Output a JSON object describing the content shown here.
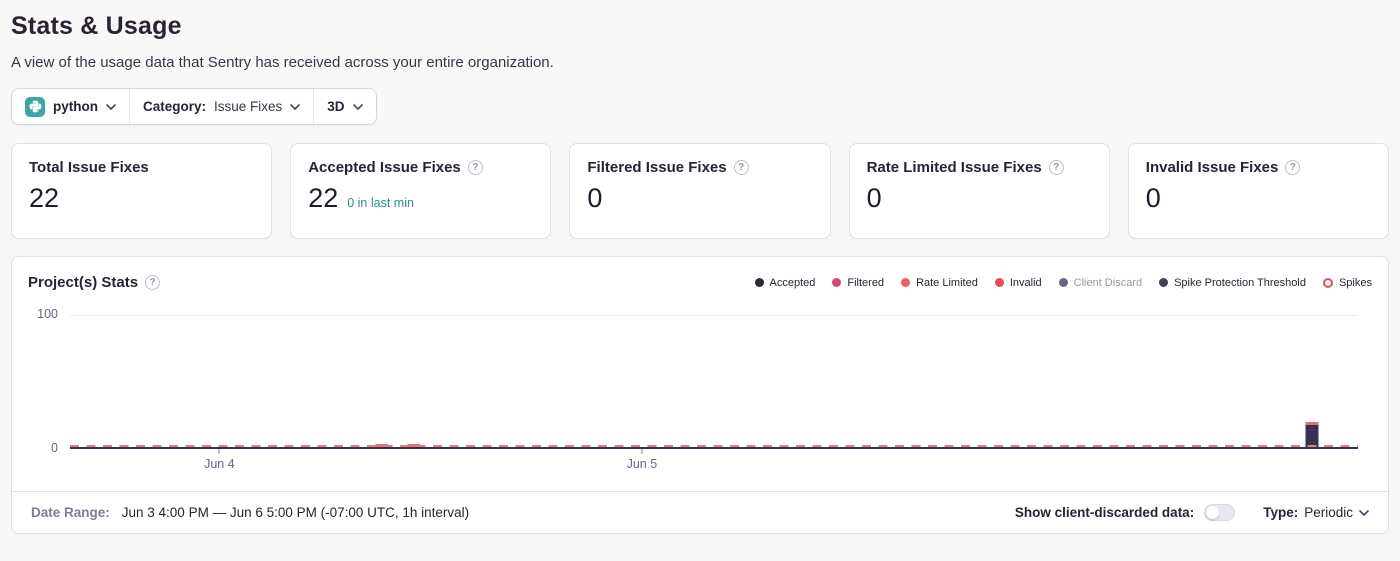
{
  "page": {
    "title": "Stats & Usage",
    "subtitle": "A view of the usage data that Sentry has received across your entire organization."
  },
  "icons": {
    "help": "?"
  },
  "colors": {
    "accent_teal": "#2d8f8a",
    "python_icon_bg": "#3aa6a6",
    "axis": "#3a3152",
    "bar_fill": "#3b3153",
    "bar_cap": "#ee6a72",
    "threshold_dash": "#e97b7b",
    "card_border": "#e3dee9",
    "page_bg": "#f8f8f9"
  },
  "filters": {
    "project": {
      "label": "python"
    },
    "category": {
      "label": "Category:",
      "value": "Issue Fixes"
    },
    "period": {
      "label": "3D"
    }
  },
  "cards": [
    {
      "title": "Total Issue Fixes",
      "value": "22"
    },
    {
      "title": "Accepted Issue Fixes",
      "value": "22",
      "extra": "0 in last min"
    },
    {
      "title": "Filtered Issue Fixes",
      "value": "0"
    },
    {
      "title": "Rate Limited Issue Fixes",
      "value": "0"
    },
    {
      "title": "Invalid Issue Fixes",
      "value": "0"
    }
  ],
  "chart": {
    "title": "Project(s) Stats",
    "legend": [
      {
        "label": "Accepted",
        "color": "#2f2936"
      },
      {
        "label": "Filtered",
        "color": "#d0487e"
      },
      {
        "label": "Rate Limited",
        "color": "#ec5e64"
      },
      {
        "label": "Invalid",
        "color": "#ea4a55"
      },
      {
        "label": "Client Discard",
        "color": "#6f6487",
        "muted": true
      },
      {
        "label": "Spike Protection Threshold",
        "color": "#443d54"
      },
      {
        "label": "Spikes",
        "color": "#ee4b5a",
        "hollow": true
      }
    ]
  },
  "chart_data": {
    "type": "bar",
    "title": "Project(s) Stats",
    "ylim": [
      0,
      100
    ],
    "yticks": [
      0,
      100
    ],
    "grid": "horizontal-top-only",
    "legend_position": "top-right",
    "xticks": [
      {
        "label": "Jun 4",
        "pos": 0.116
      },
      {
        "label": "Jun 5",
        "pos": 0.444
      }
    ],
    "series": [
      {
        "name": "Accepted",
        "color": "#3b3153",
        "cap_color": "#ee6a72",
        "bars": [
          {
            "x_pos": 0.242,
            "value": 1
          },
          {
            "x_pos": 0.267,
            "value": 2
          },
          {
            "x_pos": 0.964,
            "value": 19
          }
        ]
      }
    ],
    "threshold": {
      "name": "Spikes",
      "style": "dashed",
      "color": "#e97b7b",
      "value": 0
    }
  },
  "footer": {
    "date_range_label": "Date Range:",
    "date_range_value": "Jun 3 4:00 PM — Jun 6 5:00 PM (-07:00 UTC, 1h interval)",
    "toggle_label": "Show client-discarded data:",
    "toggle_state": "off",
    "type_label": "Type:",
    "type_value": "Periodic"
  }
}
